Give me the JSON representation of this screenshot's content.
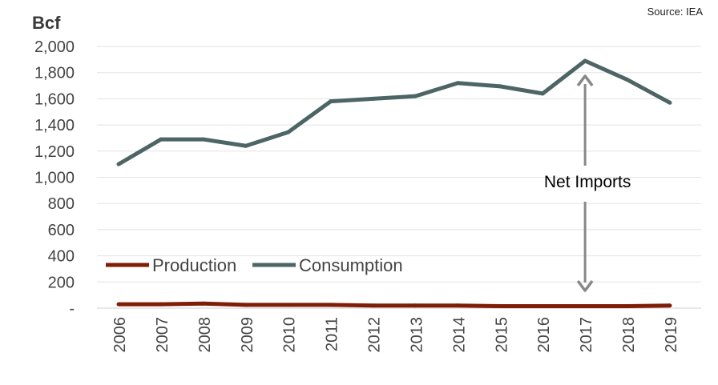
{
  "chart_data": {
    "type": "line",
    "title": "",
    "unit_label": "Bcf",
    "source": "Source: IEA",
    "categories": [
      "2006",
      "2007",
      "2008",
      "2009",
      "2010",
      "2011",
      "2012",
      "2013",
      "2014",
      "2015",
      "2016",
      "2017",
      "2018",
      "2019"
    ],
    "ylim": [
      0,
      2000
    ],
    "yticks": [
      0,
      200,
      400,
      600,
      800,
      1000,
      1200,
      1400,
      1600,
      1800,
      2000
    ],
    "ytick_labels": [
      "-",
      "200",
      "400",
      "600",
      "800",
      "1,000",
      "1,200",
      "1,400",
      "1,600",
      "1,800",
      "2,000"
    ],
    "grid": "horizontal",
    "legend_position": "bottom-left",
    "series": [
      {
        "name": "Production",
        "color": "#7f1d06",
        "values": [
          30,
          30,
          35,
          25,
          25,
          25,
          20,
          20,
          20,
          15,
          15,
          15,
          15,
          20
        ]
      },
      {
        "name": "Consumption",
        "color": "#4e6565",
        "values": [
          1100,
          1290,
          1290,
          1240,
          1345,
          1580,
          1600,
          1620,
          1720,
          1695,
          1640,
          1890,
          1745,
          1570
        ]
      }
    ],
    "annotation": {
      "text": "Net Imports",
      "year": "2017",
      "from": 0,
      "to": 1890,
      "color": "#888888"
    }
  }
}
